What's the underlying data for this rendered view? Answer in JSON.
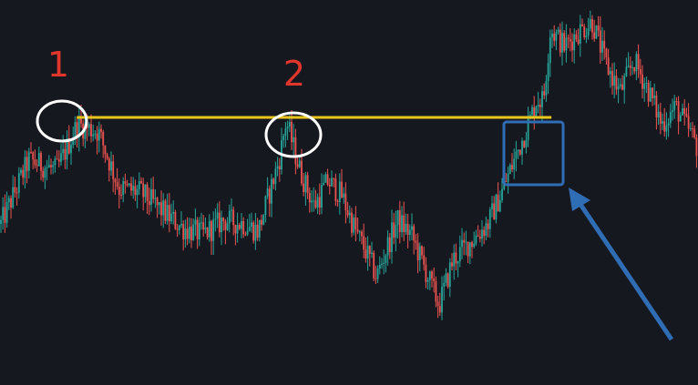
{
  "chart_data": {
    "type": "candlestick",
    "title": "",
    "xlabel": "",
    "ylabel": "",
    "axes_visible": false,
    "grid": false,
    "background": "#16181f",
    "up_color": "#26a69a",
    "down_color": "#ef5350",
    "ylim": [
      0,
      100
    ],
    "close_path": [
      {
        "x": 0,
        "y": 40
      },
      {
        "x": 4,
        "y": 58
      },
      {
        "x": 8,
        "y": 55
      },
      {
        "x": 11,
        "y": 68
      },
      {
        "x": 14,
        "y": 66
      },
      {
        "x": 17,
        "y": 50
      },
      {
        "x": 20,
        "y": 49
      },
      {
        "x": 23,
        "y": 44
      },
      {
        "x": 26,
        "y": 39
      },
      {
        "x": 29,
        "y": 37
      },
      {
        "x": 32,
        "y": 41
      },
      {
        "x": 35,
        "y": 40
      },
      {
        "x": 37,
        "y": 38
      },
      {
        "x": 40,
        "y": 58
      },
      {
        "x": 41,
        "y": 69
      },
      {
        "x": 43,
        "y": 55
      },
      {
        "x": 45,
        "y": 45
      },
      {
        "x": 47,
        "y": 52
      },
      {
        "x": 49,
        "y": 48
      },
      {
        "x": 51,
        "y": 38
      },
      {
        "x": 53,
        "y": 30
      },
      {
        "x": 54,
        "y": 25
      },
      {
        "x": 56,
        "y": 36
      },
      {
        "x": 57,
        "y": 41
      },
      {
        "x": 59,
        "y": 37
      },
      {
        "x": 61,
        "y": 27
      },
      {
        "x": 63,
        "y": 17
      },
      {
        "x": 65,
        "y": 30
      },
      {
        "x": 68,
        "y": 36
      },
      {
        "x": 70,
        "y": 40
      },
      {
        "x": 72,
        "y": 49
      },
      {
        "x": 74,
        "y": 59
      },
      {
        "x": 76,
        "y": 69
      },
      {
        "x": 77,
        "y": 75
      },
      {
        "x": 78,
        "y": 75
      },
      {
        "x": 79,
        "y": 95
      },
      {
        "x": 81,
        "y": 90
      },
      {
        "x": 83,
        "y": 94
      },
      {
        "x": 85,
        "y": 97
      },
      {
        "x": 87,
        "y": 85
      },
      {
        "x": 89,
        "y": 77
      },
      {
        "x": 91,
        "y": 86
      },
      {
        "x": 93,
        "y": 78
      },
      {
        "x": 95,
        "y": 68
      },
      {
        "x": 97,
        "y": 73
      },
      {
        "x": 99,
        "y": 66
      },
      {
        "x": 100,
        "y": 62
      }
    ],
    "annotations": {
      "labels": [
        {
          "id": "peak-1",
          "text": "1",
          "color": "#e0362b",
          "at_x": 11
        },
        {
          "id": "peak-2",
          "text": "2",
          "color": "#e0362b",
          "at_x": 41
        }
      ],
      "resistance_line": {
        "y": 70,
        "x_from": 11,
        "x_to": 79,
        "color": "#e8c61e"
      },
      "circles_color": "#ffffff",
      "box_color": "#2f6db5",
      "arrow_color": "#2f6db5"
    }
  }
}
